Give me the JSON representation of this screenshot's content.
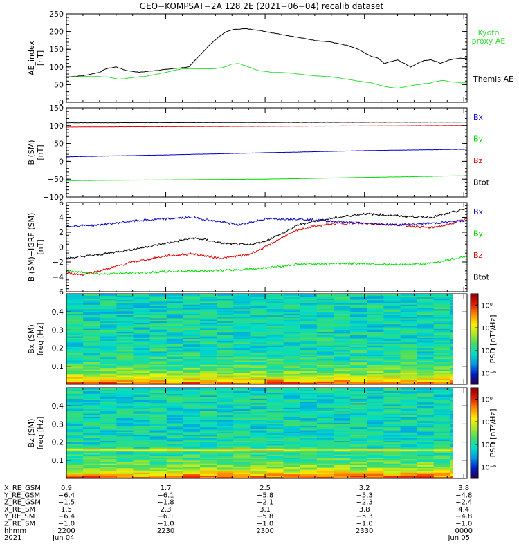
{
  "title": "GEO−KOMPSAT−2A 128.2E (2021−06−04) recalib dataset",
  "colors": {
    "black": "#000000",
    "blue": "#0000cc",
    "green": "#00dd00",
    "red": "#dd0000",
    "kyoto": "#33dd33"
  },
  "panels": [
    {
      "id": "ae",
      "type": "line",
      "ylabel": [
        "AE_index",
        "[nT]"
      ],
      "ylim": [
        0,
        250
      ],
      "yticks": [
        "0",
        "50",
        "100",
        "150",
        "200",
        "250"
      ],
      "legend": [
        {
          "text": "Kyoto\nproxy AE",
          "color": "kyoto"
        },
        {
          "text": "Themis AE",
          "color": "black"
        }
      ],
      "series": [
        {
          "name": "Themis AE",
          "color": "black",
          "t": [
            0,
            5,
            10,
            12,
            15,
            18,
            22,
            27,
            32,
            37,
            40,
            43,
            46,
            48,
            50,
            52,
            54,
            57,
            60,
            63,
            66,
            69,
            72,
            75,
            80,
            85,
            88,
            90,
            92,
            94,
            96,
            98,
            100,
            102,
            104,
            106,
            108,
            110,
            112,
            113,
            115,
            117,
            119,
            121
          ],
          "y": [
            72,
            75,
            85,
            95,
            100,
            90,
            85,
            90,
            95,
            100,
            130,
            160,
            185,
            198,
            205,
            207,
            208,
            205,
            200,
            195,
            190,
            185,
            180,
            175,
            170,
            160,
            150,
            140,
            130,
            125,
            110,
            115,
            120,
            110,
            100,
            110,
            118,
            120,
            115,
            110,
            118,
            122,
            125,
            124
          ]
        },
        {
          "name": "Kyoto proxy AE",
          "color": "kyoto",
          "t": [
            0,
            8,
            12,
            16,
            20,
            25,
            30,
            35,
            40,
            45,
            48,
            50,
            52,
            55,
            58,
            62,
            65,
            70,
            75,
            80,
            85,
            88,
            92,
            96,
            98,
            100,
            103,
            106,
            110,
            112,
            114,
            116,
            119,
            121
          ],
          "y": [
            72,
            73,
            72,
            65,
            70,
            75,
            85,
            95,
            95,
            95,
            100,
            108,
            110,
            100,
            90,
            85,
            85,
            80,
            75,
            72,
            65,
            60,
            55,
            45,
            42,
            40,
            45,
            50,
            55,
            60,
            62,
            58,
            55,
            55
          ]
        }
      ]
    },
    {
      "id": "bsm",
      "type": "line",
      "ylabel": [
        "B (SM)",
        "[nT]"
      ],
      "ylim": [
        -100,
        150
      ],
      "yticks": [
        "−100",
        "−50",
        "0",
        "50",
        "100",
        "150"
      ],
      "legend": [
        {
          "text": "Bx",
          "color": "blue"
        },
        {
          "text": "By",
          "color": "green"
        },
        {
          "text": "Bz",
          "color": "red"
        },
        {
          "text": "Btot",
          "color": "black"
        }
      ],
      "series": [
        {
          "name": "Btot",
          "color": "black",
          "t": [
            0,
            121
          ],
          "y": [
            108,
            110
          ]
        },
        {
          "name": "Bz",
          "color": "red",
          "t": [
            0,
            60,
            121
          ],
          "y": [
            96,
            98,
            100
          ]
        },
        {
          "name": "Bx",
          "color": "blue",
          "t": [
            0,
            30,
            60,
            90,
            121
          ],
          "y": [
            13,
            18,
            24,
            30,
            34
          ]
        },
        {
          "name": "By",
          "color": "green",
          "t": [
            0,
            60,
            121
          ],
          "y": [
            -54,
            -50,
            -40
          ]
        }
      ]
    },
    {
      "id": "dbsm",
      "type": "line",
      "ylabel": [
        "B (SM)−IGRF (SM)",
        "[nT]"
      ],
      "ylim": [
        -6,
        6
      ],
      "yticks": [
        "−6",
        "−4",
        "−2",
        "0",
        "2",
        "4",
        "6"
      ],
      "legend": [
        {
          "text": "Bx",
          "color": "blue"
        },
        {
          "text": "By",
          "color": "green"
        },
        {
          "text": "Bz",
          "color": "red"
        },
        {
          "text": "Btot",
          "color": "black"
        }
      ],
      "series": [
        {
          "name": "Btot",
          "color": "black",
          "t": [
            0,
            10,
            20,
            30,
            38,
            42,
            47,
            55,
            60,
            66,
            70,
            75,
            82,
            90,
            100,
            110,
            115,
            121
          ],
          "y": [
            -1.5,
            -1,
            -0.3,
            0.5,
            1.2,
            1,
            0.5,
            0.3,
            0.8,
            2,
            3,
            3.5,
            4,
            4.5,
            4.2,
            4,
            4.5,
            5.2
          ]
        },
        {
          "name": "Bz",
          "color": "red",
          "t": [
            0,
            5,
            10,
            20,
            30,
            38,
            42,
            47,
            55,
            60,
            66,
            70,
            75,
            82,
            90,
            100,
            110,
            115,
            121
          ],
          "y": [
            -3.5,
            -3.7,
            -3.2,
            -2,
            -1.2,
            -0.9,
            -1.2,
            -1.5,
            -1,
            0,
            1.5,
            2.3,
            2.8,
            3.2,
            3.2,
            3,
            2.6,
            3,
            3.8
          ]
        },
        {
          "name": "Bx",
          "color": "blue",
          "t": [
            0,
            10,
            20,
            30,
            38,
            45,
            52,
            60,
            70,
            80,
            90,
            100,
            110,
            121
          ],
          "y": [
            2.8,
            3,
            3.5,
            3.8,
            4,
            3.5,
            3,
            3.8,
            3.8,
            3.5,
            3.2,
            3,
            3.2,
            3.6
          ]
        },
        {
          "name": "By",
          "color": "green",
          "t": [
            0,
            10,
            20,
            30,
            40,
            50,
            60,
            70,
            80,
            90,
            100,
            110,
            121
          ],
          "y": [
            -3.2,
            -3.6,
            -3.5,
            -3.3,
            -3.2,
            -3.1,
            -2.8,
            -2.3,
            -2.2,
            -2.2,
            -2.4,
            -2.2,
            -1.2
          ]
        }
      ]
    },
    {
      "id": "bx_psd",
      "type": "heatmap",
      "ylabel": [
        "Bx (SM)",
        "freq [Hz]"
      ],
      "ylim": [
        0,
        0.5
      ],
      "yticks": [
        "0.1",
        "0.2",
        "0.3",
        "0.4"
      ],
      "cbar_label": "PSD [nT²/Hz]",
      "cbar_ticks": [
        "10⁰",
        "10⁻²",
        "10⁻⁴",
        "10⁻⁶"
      ],
      "cbar_range": [
        -7,
        1
      ]
    },
    {
      "id": "bz_psd",
      "type": "heatmap",
      "ylabel": [
        "Bz (SM)",
        "freq [Hz]"
      ],
      "ylim": [
        0,
        0.5
      ],
      "yticks": [
        "0.1",
        "0.2",
        "0.3",
        "0.4"
      ],
      "cbar_label": "PSD [nT²/Hz]",
      "cbar_ticks": [
        "10⁰",
        "10⁻²",
        "10⁻⁴",
        "10⁻⁶"
      ],
      "cbar_range": [
        -7,
        1
      ]
    }
  ],
  "chart_data": {
    "type": "line",
    "title": "GEO−KOMPSAT−2A 128.2E (2021−06−04) recalib dataset",
    "x": [
      "2200",
      "2230",
      "2300",
      "2330",
      "0000"
    ],
    "xlim_minutes": [
      0,
      121
    ]
  },
  "ephemeris": {
    "labels": [
      "X_RE_GSM",
      "Y_RE_GSM",
      "Z_RE_GSM",
      "X_RE_SM",
      "Y_RE_SM",
      "Z_RE_SM",
      "hhmm",
      "2021"
    ],
    "columns": [
      [
        "0.9",
        "−6.4",
        "−1.5",
        "1.5",
        "−6.4",
        "−1.0",
        "2200",
        "Jun 04"
      ],
      [
        "1.7",
        "−6.1",
        "−1.8",
        "2.3",
        "−6.1",
        "−1.0",
        "2230",
        ""
      ],
      [
        "2.5",
        "−5.8",
        "−2.1",
        "3.1",
        "−5.8",
        "−1.0",
        "2300",
        ""
      ],
      [
        "3.2",
        "−5.3",
        "−2.3",
        "3.8",
        "−5.3",
        "−1.0",
        "2330",
        ""
      ],
      [
        "3.8",
        "−4.8",
        "−2.4",
        "4.4",
        "−4.8",
        "−1.0",
        "0000",
        "Jun 05"
      ]
    ]
  }
}
